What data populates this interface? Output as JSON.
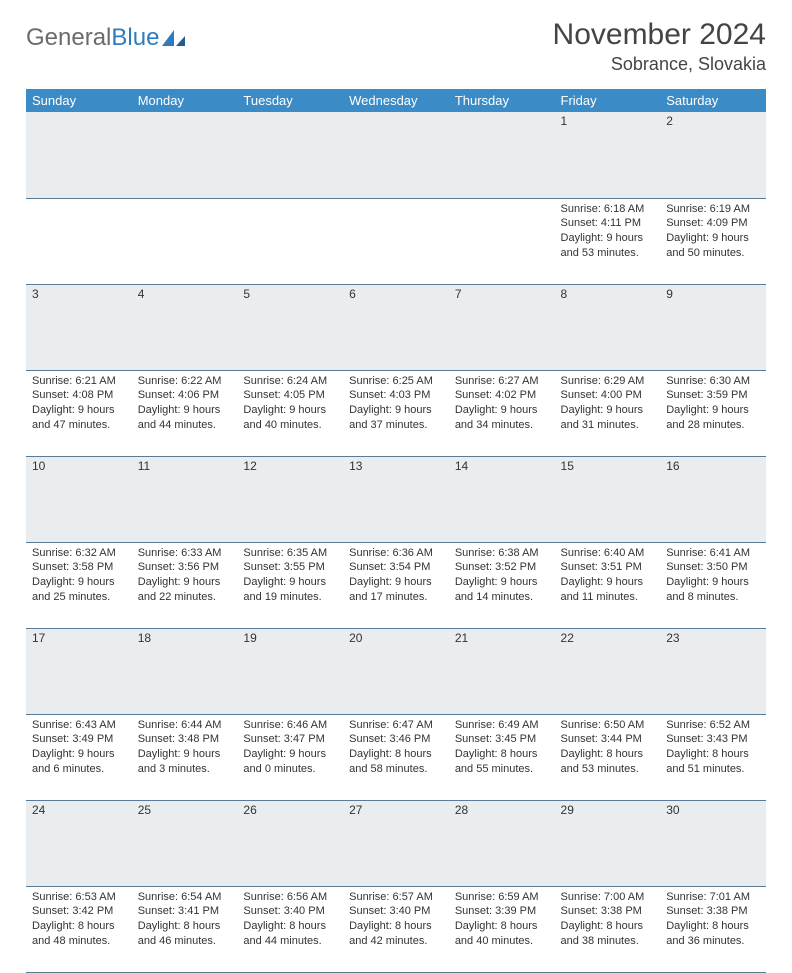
{
  "brand": {
    "part1": "General",
    "part2": "Blue"
  },
  "title": "November 2024",
  "location": "Sobrance, Slovakia",
  "colors": {
    "header_bg": "#3b8bc7",
    "header_text": "#ffffff",
    "daynum_bg": "#e9edf0",
    "row_border": "#5a7a96",
    "text": "#333333",
    "logo_gray": "#6b6b6b",
    "logo_blue": "#2f7bbf"
  },
  "weekdays": [
    "Sunday",
    "Monday",
    "Tuesday",
    "Wednesday",
    "Thursday",
    "Friday",
    "Saturday"
  ],
  "weeks": [
    [
      null,
      null,
      null,
      null,
      null,
      {
        "n": "1",
        "sunrise": "6:18 AM",
        "sunset": "4:11 PM",
        "day_h": 9,
        "day_m": 53
      },
      {
        "n": "2",
        "sunrise": "6:19 AM",
        "sunset": "4:09 PM",
        "day_h": 9,
        "day_m": 50
      }
    ],
    [
      {
        "n": "3",
        "sunrise": "6:21 AM",
        "sunset": "4:08 PM",
        "day_h": 9,
        "day_m": 47
      },
      {
        "n": "4",
        "sunrise": "6:22 AM",
        "sunset": "4:06 PM",
        "day_h": 9,
        "day_m": 44
      },
      {
        "n": "5",
        "sunrise": "6:24 AM",
        "sunset": "4:05 PM",
        "day_h": 9,
        "day_m": 40
      },
      {
        "n": "6",
        "sunrise": "6:25 AM",
        "sunset": "4:03 PM",
        "day_h": 9,
        "day_m": 37
      },
      {
        "n": "7",
        "sunrise": "6:27 AM",
        "sunset": "4:02 PM",
        "day_h": 9,
        "day_m": 34
      },
      {
        "n": "8",
        "sunrise": "6:29 AM",
        "sunset": "4:00 PM",
        "day_h": 9,
        "day_m": 31
      },
      {
        "n": "9",
        "sunrise": "6:30 AM",
        "sunset": "3:59 PM",
        "day_h": 9,
        "day_m": 28
      }
    ],
    [
      {
        "n": "10",
        "sunrise": "6:32 AM",
        "sunset": "3:58 PM",
        "day_h": 9,
        "day_m": 25
      },
      {
        "n": "11",
        "sunrise": "6:33 AM",
        "sunset": "3:56 PM",
        "day_h": 9,
        "day_m": 22
      },
      {
        "n": "12",
        "sunrise": "6:35 AM",
        "sunset": "3:55 PM",
        "day_h": 9,
        "day_m": 19
      },
      {
        "n": "13",
        "sunrise": "6:36 AM",
        "sunset": "3:54 PM",
        "day_h": 9,
        "day_m": 17
      },
      {
        "n": "14",
        "sunrise": "6:38 AM",
        "sunset": "3:52 PM",
        "day_h": 9,
        "day_m": 14
      },
      {
        "n": "15",
        "sunrise": "6:40 AM",
        "sunset": "3:51 PM",
        "day_h": 9,
        "day_m": 11
      },
      {
        "n": "16",
        "sunrise": "6:41 AM",
        "sunset": "3:50 PM",
        "day_h": 9,
        "day_m": 8
      }
    ],
    [
      {
        "n": "17",
        "sunrise": "6:43 AM",
        "sunset": "3:49 PM",
        "day_h": 9,
        "day_m": 6
      },
      {
        "n": "18",
        "sunrise": "6:44 AM",
        "sunset": "3:48 PM",
        "day_h": 9,
        "day_m": 3
      },
      {
        "n": "19",
        "sunrise": "6:46 AM",
        "sunset": "3:47 PM",
        "day_h": 9,
        "day_m": 0
      },
      {
        "n": "20",
        "sunrise": "6:47 AM",
        "sunset": "3:46 PM",
        "day_h": 8,
        "day_m": 58
      },
      {
        "n": "21",
        "sunrise": "6:49 AM",
        "sunset": "3:45 PM",
        "day_h": 8,
        "day_m": 55
      },
      {
        "n": "22",
        "sunrise": "6:50 AM",
        "sunset": "3:44 PM",
        "day_h": 8,
        "day_m": 53
      },
      {
        "n": "23",
        "sunrise": "6:52 AM",
        "sunset": "3:43 PM",
        "day_h": 8,
        "day_m": 51
      }
    ],
    [
      {
        "n": "24",
        "sunrise": "6:53 AM",
        "sunset": "3:42 PM",
        "day_h": 8,
        "day_m": 48
      },
      {
        "n": "25",
        "sunrise": "6:54 AM",
        "sunset": "3:41 PM",
        "day_h": 8,
        "day_m": 46
      },
      {
        "n": "26",
        "sunrise": "6:56 AM",
        "sunset": "3:40 PM",
        "day_h": 8,
        "day_m": 44
      },
      {
        "n": "27",
        "sunrise": "6:57 AM",
        "sunset": "3:40 PM",
        "day_h": 8,
        "day_m": 42
      },
      {
        "n": "28",
        "sunrise": "6:59 AM",
        "sunset": "3:39 PM",
        "day_h": 8,
        "day_m": 40
      },
      {
        "n": "29",
        "sunrise": "7:00 AM",
        "sunset": "3:38 PM",
        "day_h": 8,
        "day_m": 38
      },
      {
        "n": "30",
        "sunrise": "7:01 AM",
        "sunset": "3:38 PM",
        "day_h": 8,
        "day_m": 36
      }
    ]
  ],
  "labels": {
    "sunrise": "Sunrise:",
    "sunset": "Sunset:",
    "daylight": "Daylight:",
    "hours": "hours",
    "and": "and",
    "minutes": "minutes."
  }
}
